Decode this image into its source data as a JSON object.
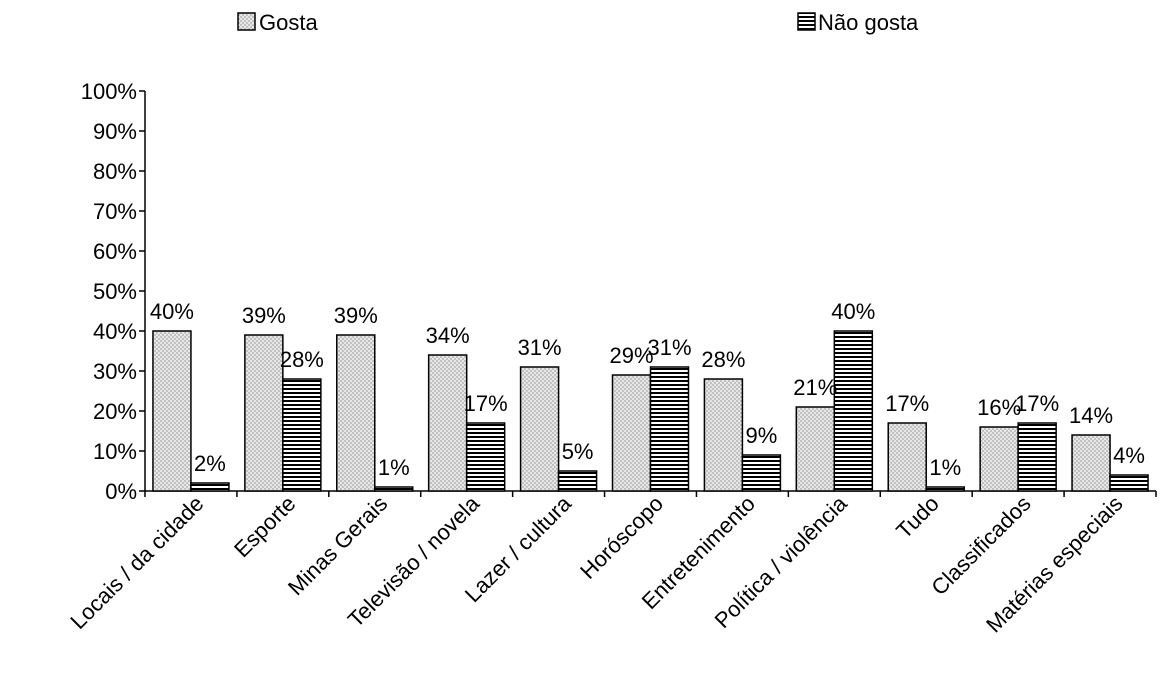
{
  "chart_data": {
    "type": "bar",
    "categories": [
      "Locais / da cidade",
      "Esporte",
      "Minas Gerais",
      "Televisão / novela",
      "Lazer / cultura",
      "Horóscopo",
      "Entretenimento",
      "Política / violência",
      "Tudo",
      "Classificados",
      "Matérias especiais"
    ],
    "series": [
      {
        "name": "Gosta",
        "values": [
          40,
          39,
          39,
          34,
          31,
          29,
          28,
          21,
          17,
          16,
          14
        ],
        "labels": [
          "40%",
          "39%",
          "39%",
          "34%",
          "31%",
          "29%",
          "28%",
          "21%",
          "17%",
          "16%",
          "14%"
        ],
        "pattern": "dots"
      },
      {
        "name": "Não gosta",
        "values": [
          2,
          28,
          1,
          17,
          5,
          31,
          9,
          40,
          1,
          17,
          4
        ],
        "labels": [
          "2%",
          "28%",
          "1%",
          "17%",
          "5%",
          "31%",
          "9%",
          "40%",
          "1%",
          "17%",
          "4%"
        ],
        "pattern": "horizontal-stripes"
      }
    ],
    "ylim": [
      0,
      100
    ],
    "yticks": [
      "0%",
      "10%",
      "20%",
      "30%",
      "40%",
      "50%",
      "60%",
      "70%",
      "80%",
      "90%",
      "100%"
    ],
    "legend_position": "top",
    "grid": false,
    "colors": {
      "bar_fill": "#d9d9d9",
      "stroke": "#000000"
    }
  }
}
